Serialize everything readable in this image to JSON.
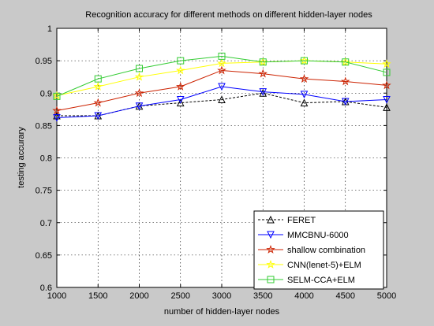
{
  "chart_data": {
    "type": "line",
    "title": "Recognition accuracy for different methods on different hidden-layer nodes",
    "xlabel": "number of hidden-layer nodes",
    "ylabel": "testing accurary",
    "xlim": [
      1000,
      5000
    ],
    "ylim": [
      0.6,
      1.0
    ],
    "grid": true,
    "legend_position": "bottom-right",
    "x": [
      1000,
      1500,
      2000,
      2500,
      3000,
      3500,
      4000,
      4500,
      5000
    ],
    "xticks": [
      "1000",
      "1500",
      "2000",
      "2500",
      "3000",
      "3500",
      "4000",
      "4500",
      "5000"
    ],
    "yticks": [
      "0.6",
      "0.65",
      "0.7",
      "0.75",
      "0.8",
      "0.85",
      "0.9",
      "0.95",
      "1"
    ],
    "series": [
      {
        "name": "FERET",
        "color": "#000000",
        "dash": true,
        "marker": "triangle-up",
        "values": [
          0.865,
          0.865,
          0.88,
          0.885,
          0.89,
          0.9,
          0.885,
          0.887,
          0.878
        ]
      },
      {
        "name": "MMCBNU-6000",
        "color": "#0000ff",
        "dash": false,
        "marker": "triangle-down",
        "values": [
          0.862,
          0.865,
          0.88,
          0.89,
          0.91,
          0.902,
          0.898,
          0.887,
          0.89
        ]
      },
      {
        "name": "shallow combination",
        "color": "#cc2200",
        "dash": false,
        "marker": "star",
        "values": [
          0.873,
          0.885,
          0.9,
          0.91,
          0.935,
          0.93,
          0.922,
          0.918,
          0.912
        ]
      },
      {
        "name": "CNN(lenet-5)+ELM",
        "color": "#ffff00",
        "dash": false,
        "marker": "star",
        "values": [
          0.896,
          0.91,
          0.925,
          0.935,
          0.946,
          0.948,
          0.95,
          0.948,
          0.945
        ]
      },
      {
        "name": "SELM-CCA+ELM",
        "color": "#33cc33",
        "dash": false,
        "marker": "square",
        "values": [
          0.895,
          0.922,
          0.938,
          0.95,
          0.957,
          0.948,
          0.95,
          0.948,
          0.932
        ]
      }
    ]
  }
}
